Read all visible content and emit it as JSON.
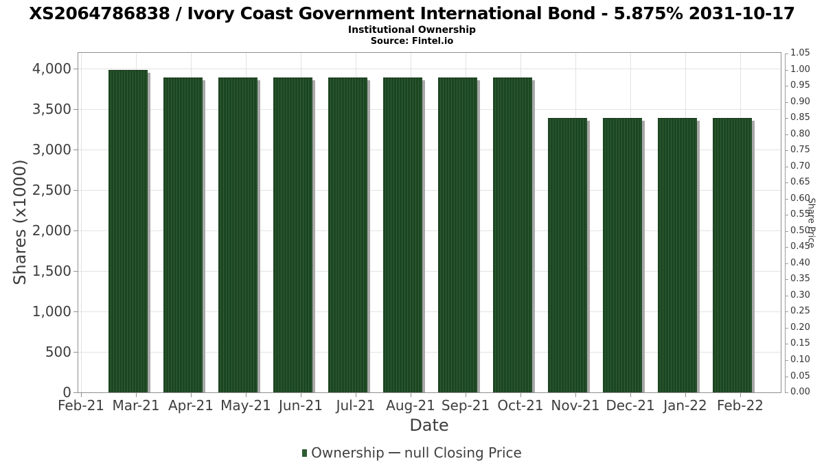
{
  "header": {
    "title": "XS2064786838 / Ivory Coast Government International Bond - 5.875% 2031-10-17",
    "subtitle": "Institutional Ownership",
    "source": "Source: Fintel.io"
  },
  "chart_data": {
    "type": "bar",
    "title": "Institutional Ownership",
    "xlabel": "Date",
    "ylabel_left": "Shares (x1000)",
    "ylabel_right": "Share Price",
    "grid": true,
    "legend_position": "bottom",
    "categories": [
      "Feb-21",
      "Mar-21",
      "Apr-21",
      "May-21",
      "Jun-21",
      "Jul-21",
      "Aug-21",
      "Sep-21",
      "Oct-21",
      "Nov-21",
      "Dec-21",
      "Jan-22",
      "Feb-22"
    ],
    "series": [
      {
        "name": "Ownership",
        "type": "bar",
        "values": [
          null,
          3985,
          3890,
          3890,
          3890,
          3890,
          3890,
          3890,
          3890,
          3390,
          3390,
          3390,
          3390
        ]
      },
      {
        "name": "null Closing Price",
        "type": "line",
        "values": []
      }
    ],
    "y_left": {
      "min": 0,
      "max": 4195,
      "ticks": [
        0,
        500,
        1000,
        1500,
        2000,
        2500,
        3000,
        3500,
        4000
      ],
      "tick_labels": [
        "0",
        "500",
        "1,000",
        "1,500",
        "2,000",
        "2,500",
        "3,000",
        "3,500",
        "4,000"
      ]
    },
    "y_right": {
      "min": 0,
      "max": 1.05,
      "ticks": [
        0,
        0.05,
        0.1,
        0.15,
        0.2,
        0.25,
        0.3,
        0.35,
        0.4,
        0.45,
        0.5,
        0.55,
        0.6,
        0.65,
        0.7,
        0.75,
        0.8,
        0.85,
        0.9,
        0.95,
        1.0,
        1.05
      ],
      "tick_labels": [
        "0.00",
        "0.05",
        "0.10",
        "0.15",
        "0.20",
        "0.25",
        "0.30",
        "0.35",
        "0.40",
        "0.45",
        "0.50",
        "0.55",
        "0.60",
        "0.65",
        "0.70",
        "0.75",
        "0.80",
        "0.85",
        "0.90",
        "0.95",
        "1.00",
        "1.05"
      ]
    }
  },
  "legend": {
    "items": [
      {
        "label": "Ownership",
        "swatch": "square",
        "color": "#2d5c33"
      },
      {
        "label": "null Closing Price",
        "swatch": "dash",
        "color": "#4a4a4a"
      }
    ]
  },
  "colors": {
    "bar_base": "#1c4521",
    "bar_stripe": "#2f5e36",
    "bar_shadow": "#a8a8a8",
    "grid": "#e2e2e2",
    "plot_border": "#8e8e8e",
    "axis_text": "#3d3d3d"
  }
}
